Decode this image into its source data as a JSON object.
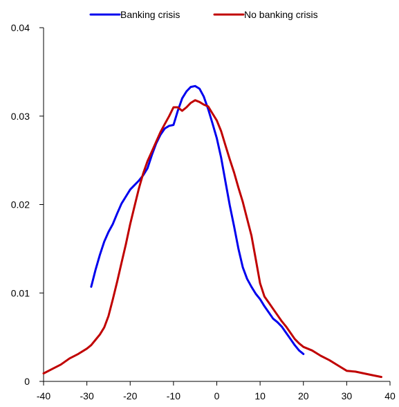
{
  "chart_data": {
    "type": "line",
    "title": "",
    "xlabel": "",
    "ylabel": "",
    "xlim": [
      -40,
      40
    ],
    "ylim": [
      0,
      0.04
    ],
    "x_ticks": [
      -40,
      -30,
      -20,
      -10,
      0,
      10,
      20,
      30,
      40
    ],
    "x_tick_labels": [
      "-40",
      "-30",
      "-20",
      "-10",
      "0",
      "10",
      "20",
      "30",
      "40"
    ],
    "y_ticks": [
      0,
      0.01,
      0.02,
      0.03,
      0.04
    ],
    "y_tick_labels": [
      "0",
      "0.01",
      "0.02",
      "0.03",
      "0.04"
    ],
    "grid": false,
    "legend_position": "top",
    "series": [
      {
        "name": "Banking crisis",
        "color": "#0000ee",
        "x": [
          -29,
          -28,
          -27,
          -26,
          -25,
          -24,
          -23,
          -22,
          -21,
          -20,
          -19,
          -18,
          -17,
          -16,
          -15,
          -14,
          -13,
          -12,
          -11,
          -10,
          -9,
          -8,
          -7,
          -6,
          -5,
          -4,
          -3,
          -2,
          -1,
          0,
          1,
          2,
          3,
          4,
          5,
          6,
          7,
          8,
          9,
          10,
          11,
          12,
          13,
          14,
          15,
          16,
          17,
          18,
          19,
          20
        ],
        "values": [
          0.0107,
          0.0126,
          0.0143,
          0.0158,
          0.0169,
          0.0178,
          0.019,
          0.0201,
          0.0209,
          0.0217,
          0.0222,
          0.0227,
          0.0233,
          0.0241,
          0.0256,
          0.0269,
          0.0279,
          0.0286,
          0.0289,
          0.029,
          0.0306,
          0.032,
          0.0328,
          0.0333,
          0.0334,
          0.0331,
          0.0322,
          0.0308,
          0.0292,
          0.0275,
          0.0253,
          0.0226,
          0.0199,
          0.0175,
          0.015,
          0.0129,
          0.0116,
          0.0107,
          0.0099,
          0.0093,
          0.0085,
          0.0078,
          0.0071,
          0.0067,
          0.0062,
          0.0055,
          0.0048,
          0.0041,
          0.0035,
          0.0031
        ]
      },
      {
        "name": "No banking crisis",
        "color": "#c00000",
        "x": [
          -40,
          -38,
          -36,
          -34,
          -32,
          -30,
          -29,
          -28,
          -27,
          -26,
          -25,
          -24,
          -23,
          -22,
          -21,
          -20,
          -19,
          -18,
          -17,
          -16,
          -15,
          -14,
          -13,
          -12,
          -11,
          -10,
          -9,
          -8,
          -7,
          -6,
          -5,
          -4,
          -3,
          -2,
          -1,
          0,
          1,
          2,
          3,
          4,
          5,
          6,
          7,
          8,
          9,
          10,
          11,
          12,
          13,
          14,
          15,
          16,
          17,
          18,
          19,
          20,
          22,
          24,
          26,
          28,
          30,
          32,
          34,
          36,
          38
        ],
        "values": [
          0.0009,
          0.0014,
          0.0019,
          0.0026,
          0.0031,
          0.0037,
          0.0041,
          0.0047,
          0.0053,
          0.0061,
          0.0074,
          0.0093,
          0.0113,
          0.0134,
          0.0155,
          0.0178,
          0.0198,
          0.0218,
          0.0235,
          0.0249,
          0.026,
          0.0271,
          0.0282,
          0.0291,
          0.03,
          0.031,
          0.031,
          0.0306,
          0.031,
          0.0315,
          0.0318,
          0.0316,
          0.0313,
          0.0311,
          0.0303,
          0.0295,
          0.0283,
          0.0267,
          0.0251,
          0.0236,
          0.0219,
          0.0203,
          0.0184,
          0.0165,
          0.0138,
          0.0111,
          0.0096,
          0.0089,
          0.0082,
          0.0075,
          0.0068,
          0.0062,
          0.0055,
          0.0048,
          0.0043,
          0.0039,
          0.0035,
          0.0029,
          0.0024,
          0.0018,
          0.0012,
          0.0011,
          0.0009,
          0.0007,
          0.0005
        ]
      }
    ]
  }
}
